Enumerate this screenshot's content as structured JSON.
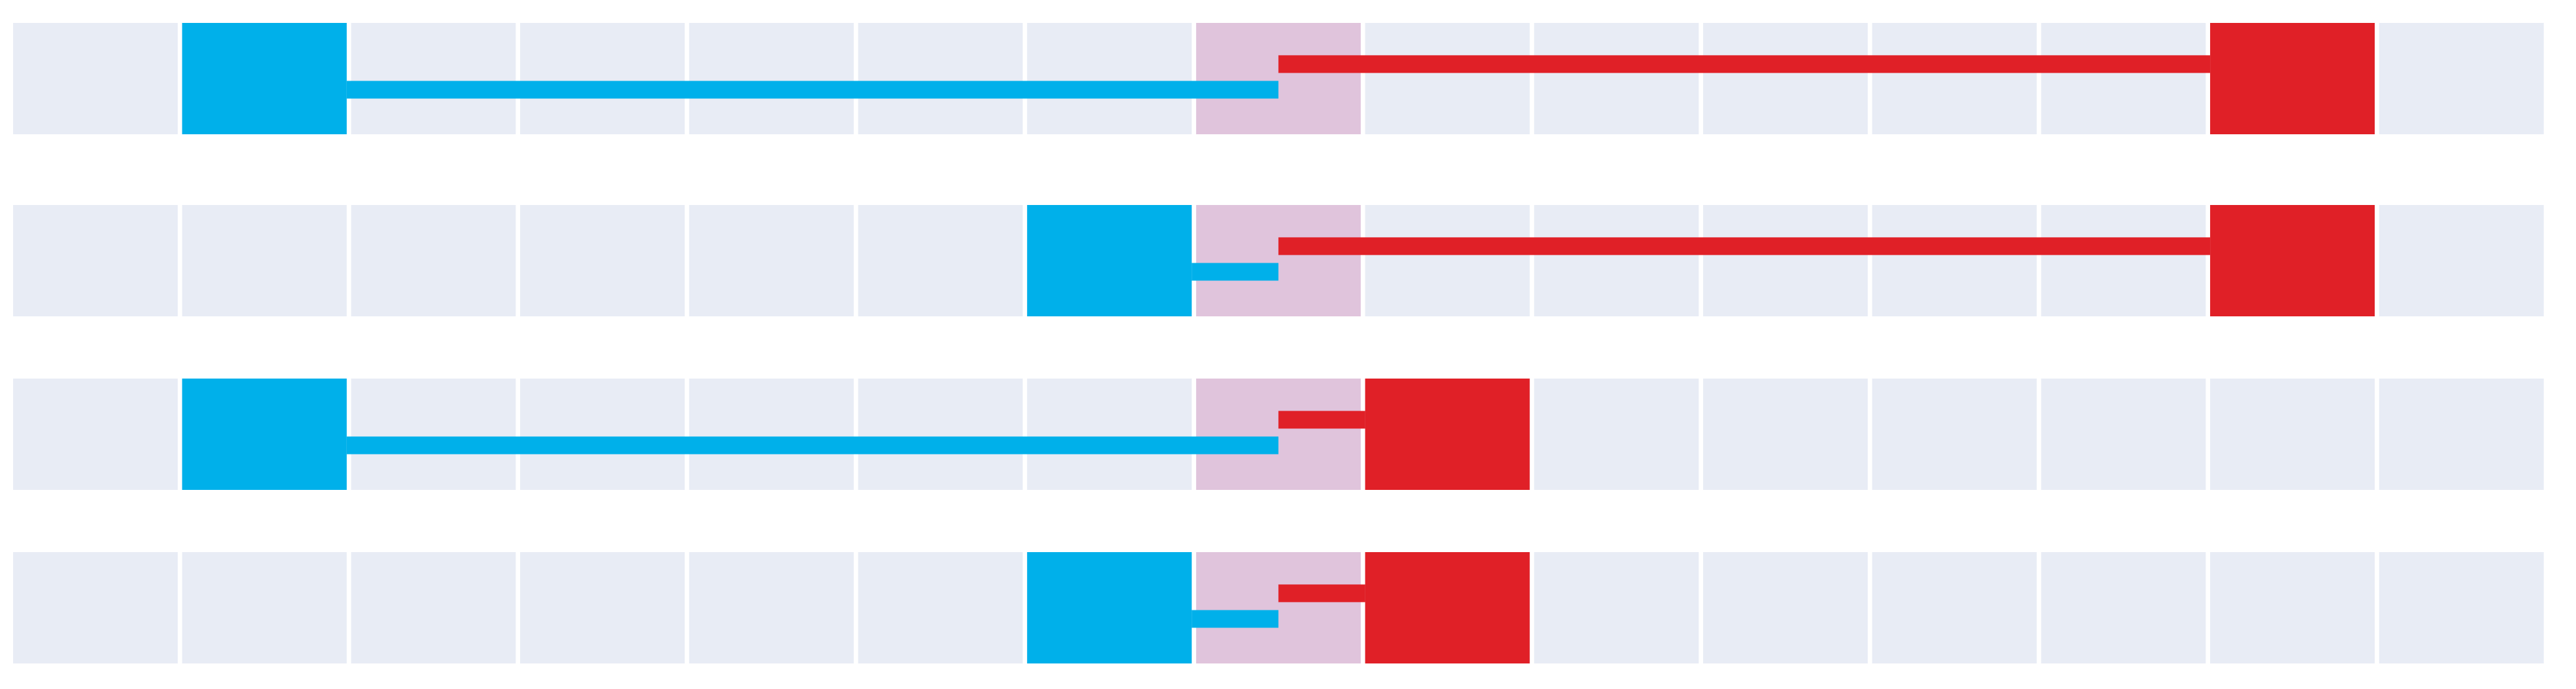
{
  "grid": {
    "columns": 15,
    "highlight_column": 7
  },
  "rows": [
    {
      "blue_col": 1,
      "red_col": 13
    },
    {
      "blue_col": 6,
      "red_col": 13
    },
    {
      "blue_col": 1,
      "red_col": 8
    },
    {
      "blue_col": 6,
      "red_col": 8
    }
  ],
  "colors": {
    "cell": "#e8ecf5",
    "highlight": "#e0c4dc",
    "blue": "#00b0ea",
    "red": "#e02027",
    "background": "#ffffff"
  }
}
